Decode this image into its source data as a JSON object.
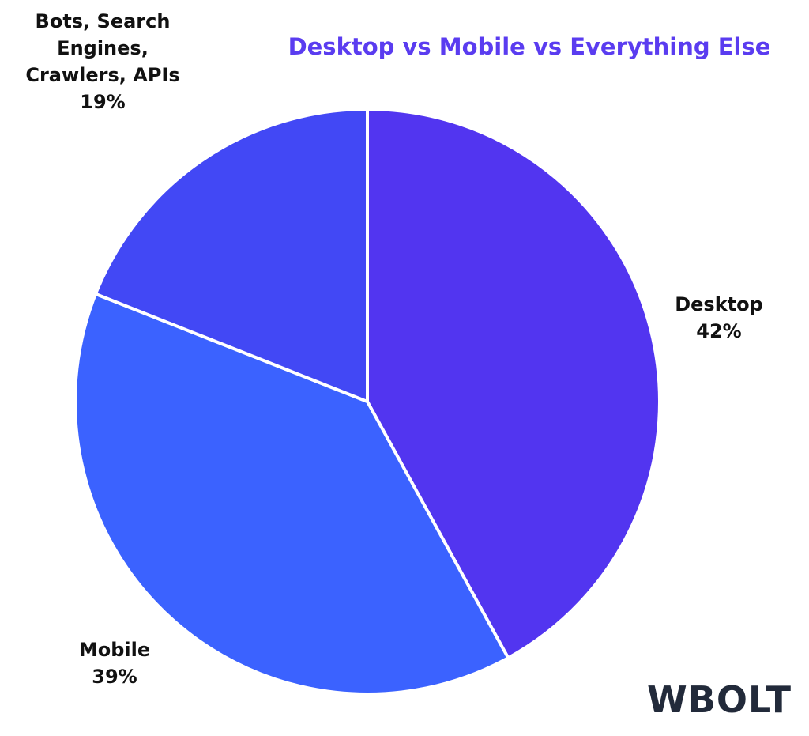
{
  "chart_data": {
    "type": "pie",
    "title": "Desktop vs Mobile vs Everything Else",
    "categories": [
      "Desktop",
      "Mobile",
      "Bots, Search Engines, Crawlers, APIs"
    ],
    "values": [
      42,
      39,
      19
    ],
    "value_labels": [
      "42%",
      "39%",
      "19%"
    ],
    "colors": [
      "#5235f0",
      "#3b62ff",
      "#4248f5"
    ]
  },
  "logo": "WBOLT"
}
